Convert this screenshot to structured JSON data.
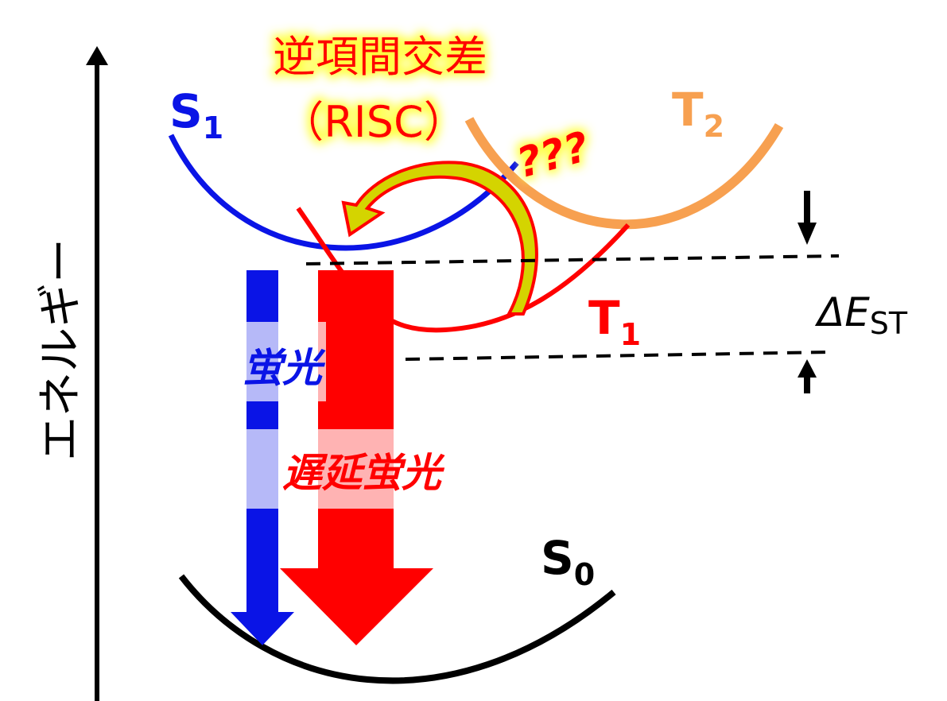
{
  "axis_label": "エネルギー",
  "title": {
    "line1": "逆項間交差",
    "line2": "（RISC）"
  },
  "question": "???",
  "states": [
    {
      "symbol": "S",
      "subscript": "1"
    },
    {
      "symbol": "T",
      "subscript": "2"
    },
    {
      "symbol": "T",
      "subscript": "1"
    },
    {
      "symbol": "S",
      "subscript": "0"
    }
  ],
  "processes": {
    "fluorescence": "蛍光",
    "delayed_fluorescence": "遅延蛍光"
  },
  "gap": {
    "symbol": "ΔE",
    "subscript": "ST"
  }
}
